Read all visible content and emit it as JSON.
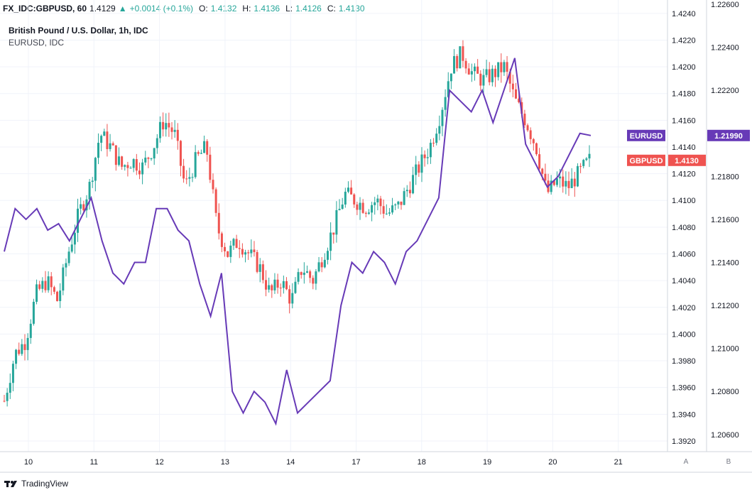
{
  "header": {
    "symbol": "FX_IDC:GBPUSD, 60",
    "last": "1.4129",
    "change": "+0.0014 (+0.1%)",
    "o_label": "O:",
    "o": "1.4132",
    "h_label": "H:",
    "h": "1.4136",
    "l_label": "L:",
    "l": "1.4126",
    "c_label": "C:",
    "c": "1.4130"
  },
  "legend": {
    "main": "British Pound / U.S. Dollar, 1h, IDC",
    "compare": "EURUSD, IDC"
  },
  "footer": {
    "brand": "TradingView"
  },
  "scale_buttons": {
    "a": "A",
    "b": "B"
  },
  "colors": {
    "up": "#26a69a",
    "down": "#ef5350",
    "eurusd": "#673ab7",
    "grid": "#f0f3fa"
  },
  "chart_data": {
    "type": "line",
    "x_ticks": [
      "10",
      "11",
      "12",
      "13",
      "14",
      "17",
      "18",
      "19",
      "20",
      "21"
    ],
    "left_axis": {
      "series": "GBPUSD",
      "ticks": [
        "1.3920",
        "1.3940",
        "1.3960",
        "1.3980",
        "1.4000",
        "1.4020",
        "1.4040",
        "1.4060",
        "1.4080",
        "1.4100",
        "1.4120",
        "1.4140",
        "1.4160",
        "1.4180",
        "1.4200",
        "1.4220",
        "1.4240"
      ],
      "ylim": [
        1.3912,
        1.425
      ],
      "last_label": "GBPUSD",
      "last_value": "1.4130"
    },
    "right_axis": {
      "series": "EURUSD",
      "ticks": [
        "1.20600",
        "1.20800",
        "1.21000",
        "1.21200",
        "1.21400",
        "1.21600",
        "1.21800",
        "1.22000",
        "1.22200",
        "1.22400",
        "1.22600"
      ],
      "ylim": [
        1.2052,
        1.2262
      ],
      "last_label": "EURUSD",
      "last_value": "1.21990"
    },
    "series": [
      {
        "name": "GBPUSD",
        "style": "candlestick",
        "close_path": [
          [
            0,
            1.395
          ],
          [
            1,
            1.3985
          ],
          [
            2,
            1.3995
          ],
          [
            3,
            1.403
          ],
          [
            4,
            1.404
          ],
          [
            5,
            1.4025
          ],
          [
            6,
            1.406
          ],
          [
            7,
            1.409
          ],
          [
            8,
            1.411
          ],
          [
            9,
            1.415
          ],
          [
            10,
            1.414
          ],
          [
            11,
            1.4125
          ],
          [
            12,
            1.413
          ],
          [
            13,
            1.4125
          ],
          [
            14,
            1.414
          ],
          [
            15,
            1.416
          ],
          [
            16,
            1.415
          ],
          [
            17,
            1.411
          ],
          [
            18,
            1.413
          ],
          [
            19,
            1.414
          ],
          [
            20,
            1.408
          ],
          [
            21,
            1.406
          ],
          [
            22,
            1.407
          ],
          [
            23,
            1.406
          ],
          [
            24,
            1.405
          ],
          [
            25,
            1.403
          ],
          [
            26,
            1.404
          ],
          [
            27,
            1.4025
          ],
          [
            28,
            1.405
          ],
          [
            29,
            1.404
          ],
          [
            30,
            1.406
          ],
          [
            31,
            1.408
          ],
          [
            32,
            1.4105
          ],
          [
            33,
            1.41
          ],
          [
            34,
            1.4095
          ],
          [
            35,
            1.41
          ],
          [
            36,
            1.409
          ],
          [
            37,
            1.4095
          ],
          [
            38,
            1.411
          ],
          [
            39,
            1.4125
          ],
          [
            40,
            1.414
          ],
          [
            41,
            1.4165
          ],
          [
            42,
            1.42
          ],
          [
            43,
            1.421
          ],
          [
            44,
            1.4195
          ],
          [
            45,
            1.419
          ],
          [
            46,
            1.4195
          ],
          [
            47,
            1.42
          ],
          [
            48,
            1.4175
          ],
          [
            49,
            1.416
          ],
          [
            50,
            1.414
          ],
          [
            51,
            1.4105
          ],
          [
            52,
            1.4115
          ],
          [
            53,
            1.411
          ],
          [
            54,
            1.412
          ],
          [
            55,
            1.413
          ]
        ]
      },
      {
        "name": "EURUSD",
        "style": "line",
        "path": [
          [
            0,
            1.2145
          ],
          [
            1,
            1.2165
          ],
          [
            2,
            1.216
          ],
          [
            3,
            1.2165
          ],
          [
            4,
            1.2155
          ],
          [
            5,
            1.2158
          ],
          [
            6,
            1.215
          ],
          [
            7,
            1.216
          ],
          [
            8,
            1.217
          ],
          [
            9,
            1.215
          ],
          [
            10,
            1.2135
          ],
          [
            11,
            1.213
          ],
          [
            12,
            1.214
          ],
          [
            13,
            1.214
          ],
          [
            14,
            1.2165
          ],
          [
            15,
            1.2165
          ],
          [
            16,
            1.2155
          ],
          [
            17,
            1.215
          ],
          [
            18,
            1.213
          ],
          [
            19,
            1.2115
          ],
          [
            20,
            1.2135
          ],
          [
            21,
            1.208
          ],
          [
            22,
            1.207
          ],
          [
            23,
            1.208
          ],
          [
            24,
            1.2075
          ],
          [
            25,
            1.2065
          ],
          [
            26,
            1.209
          ],
          [
            27,
            1.207
          ],
          [
            28,
            1.2075
          ],
          [
            29,
            1.208
          ],
          [
            30,
            1.2085
          ],
          [
            31,
            1.212
          ],
          [
            32,
            1.214
          ],
          [
            33,
            1.2135
          ],
          [
            34,
            1.2145
          ],
          [
            35,
            1.214
          ],
          [
            36,
            1.213
          ],
          [
            37,
            1.2145
          ],
          [
            38,
            1.215
          ],
          [
            39,
            1.216
          ],
          [
            40,
            1.217
          ],
          [
            41,
            1.222
          ],
          [
            42,
            1.2215
          ],
          [
            43,
            1.221
          ],
          [
            44,
            1.222
          ],
          [
            45,
            1.2205
          ],
          [
            46,
            1.222
          ],
          [
            47,
            1.2235
          ],
          [
            48,
            1.2195
          ],
          [
            49,
            1.2185
          ],
          [
            50,
            1.2175
          ],
          [
            51,
            1.218
          ],
          [
            52,
            1.219
          ],
          [
            53,
            1.22
          ],
          [
            54,
            1.2199
          ]
        ]
      }
    ],
    "grid": true
  }
}
